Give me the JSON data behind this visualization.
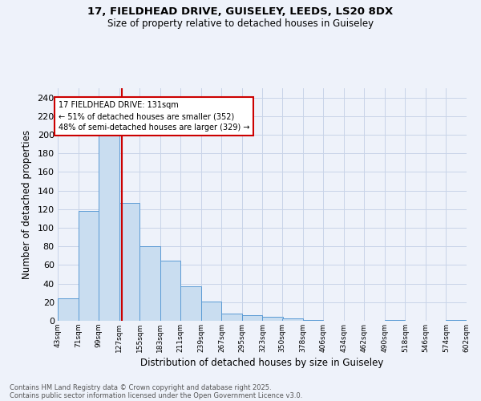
{
  "title_line1": "17, FIELDHEAD DRIVE, GUISELEY, LEEDS, LS20 8DX",
  "title_line2": "Size of property relative to detached houses in Guiseley",
  "xlabel": "Distribution of detached houses by size in Guiseley",
  "ylabel": "Number of detached properties",
  "bar_color": "#c9ddf0",
  "bar_edge_color": "#5b9bd5",
  "grid_color": "#c8d4e8",
  "background_color": "#eef2fa",
  "vline_color": "#cc0000",
  "vline_x": 131,
  "bin_edges": [
    43,
    71,
    99,
    127,
    155,
    183,
    211,
    239,
    267,
    295,
    323,
    350,
    378,
    406,
    434,
    462,
    490,
    518,
    546,
    574,
    602
  ],
  "bin_labels": [
    "43sqm",
    "71sqm",
    "99sqm",
    "127sqm",
    "155sqm",
    "183sqm",
    "211sqm",
    "239sqm",
    "267sqm",
    "295sqm",
    "323sqm",
    "350sqm",
    "378sqm",
    "406sqm",
    "434sqm",
    "462sqm",
    "490sqm",
    "518sqm",
    "546sqm",
    "574sqm",
    "602sqm"
  ],
  "bar_heights": [
    24,
    118,
    200,
    127,
    80,
    65,
    37,
    21,
    8,
    6,
    4,
    3,
    1,
    0,
    0,
    0,
    1,
    0,
    0,
    1
  ],
  "ylim": [
    0,
    250
  ],
  "yticks": [
    0,
    20,
    40,
    60,
    80,
    100,
    120,
    140,
    160,
    180,
    200,
    220,
    240
  ],
  "annotation_title": "17 FIELDHEAD DRIVE: 131sqm",
  "annotation_line2": "← 51% of detached houses are smaller (352)",
  "annotation_line3": "48% of semi-detached houses are larger (329) →",
  "annotation_box_color": "#ffffff",
  "annotation_box_edge": "#cc0000",
  "footnote_line1": "Contains HM Land Registry data © Crown copyright and database right 2025.",
  "footnote_line2": "Contains public sector information licensed under the Open Government Licence v3.0."
}
